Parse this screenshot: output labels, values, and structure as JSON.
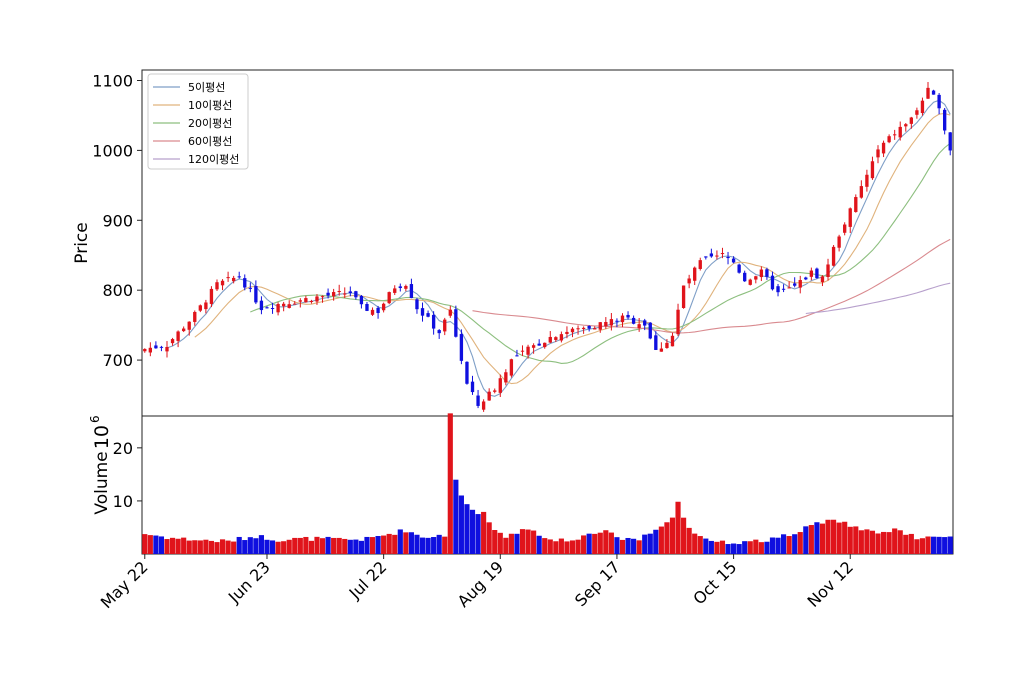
{
  "chart_data": {
    "type": "candlestick",
    "price_panel": {
      "ylabel": "Price",
      "yticks": [
        700,
        800,
        900,
        1000,
        1100
      ],
      "ylim": [
        620,
        1115
      ],
      "legend_position": "top-left",
      "legend": [
        {
          "label": "5이평선",
          "color": "#7f9fc7"
        },
        {
          "label": "10이평선",
          "color": "#e0b37d"
        },
        {
          "label": "20이평선",
          "color": "#8dbf7f"
        },
        {
          "label": "60이평선",
          "color": "#d98a8f"
        },
        {
          "label": "120이평선",
          "color": "#b7a0cc"
        }
      ]
    },
    "volume_panel": {
      "ylabel": "Volume",
      "scale_label": "10",
      "scale_exp": "6",
      "yticks": [
        10,
        20
      ],
      "ylim": [
        0,
        26
      ],
      "up_color": "#e0141b",
      "down_color": "#0f0fdf"
    },
    "xticks": [
      {
        "label": "May 22",
        "index": 0
      },
      {
        "label": "Jun 23",
        "index": 22
      },
      {
        "label": "Jul 22",
        "index": 43
      },
      {
        "label": "Aug 19",
        "index": 64
      },
      {
        "label": "Sep 17",
        "index": 85
      },
      {
        "label": "Oct 15",
        "index": 106
      },
      {
        "label": "Nov 12",
        "index": 127
      }
    ],
    "n_days": 146,
    "close_keypoints": [
      [
        0,
        716
      ],
      [
        4,
        722
      ],
      [
        9,
        765
      ],
      [
        13,
        808
      ],
      [
        17,
        820
      ],
      [
        21,
        775
      ],
      [
        25,
        782
      ],
      [
        31,
        790
      ],
      [
        37,
        797
      ],
      [
        39,
        775
      ],
      [
        42,
        770
      ],
      [
        45,
        805
      ],
      [
        47,
        810
      ],
      [
        49,
        775
      ],
      [
        53,
        740
      ],
      [
        55,
        770
      ],
      [
        58,
        665
      ],
      [
        60,
        635
      ],
      [
        63,
        660
      ],
      [
        66,
        700
      ],
      [
        70,
        720
      ],
      [
        74,
        737
      ],
      [
        80,
        748
      ],
      [
        86,
        760
      ],
      [
        90,
        752
      ],
      [
        92,
        712
      ],
      [
        95,
        735
      ],
      [
        97,
        805
      ],
      [
        100,
        840
      ],
      [
        104,
        850
      ],
      [
        106,
        840
      ],
      [
        108,
        815
      ],
      [
        111,
        825
      ],
      [
        114,
        795
      ],
      [
        117,
        805
      ],
      [
        120,
        825
      ],
      [
        122,
        818
      ],
      [
        125,
        880
      ],
      [
        128,
        930
      ],
      [
        132,
        1000
      ],
      [
        135,
        1025
      ],
      [
        138,
        1045
      ],
      [
        141,
        1085
      ],
      [
        143,
        1065
      ],
      [
        145,
        1000
      ]
    ],
    "volume_keypoints": [
      [
        0,
        3.8
      ],
      [
        5,
        3.0
      ],
      [
        10,
        2.6
      ],
      [
        15,
        2.4
      ],
      [
        20,
        3.4
      ],
      [
        24,
        2.7
      ],
      [
        30,
        2.9
      ],
      [
        36,
        2.7
      ],
      [
        40,
        2.8
      ],
      [
        44,
        3.8
      ],
      [
        47,
        4.5
      ],
      [
        50,
        3.2
      ],
      [
        54,
        3.6
      ],
      [
        55,
        26.5
      ],
      [
        56,
        14.0
      ],
      [
        57,
        11.0
      ],
      [
        59,
        8.0
      ],
      [
        61,
        7.5
      ],
      [
        63,
        4.5
      ],
      [
        65,
        3.5
      ],
      [
        69,
        5.0
      ],
      [
        72,
        3.0
      ],
      [
        76,
        2.5
      ],
      [
        80,
        3.6
      ],
      [
        83,
        4.3
      ],
      [
        85,
        3.0
      ],
      [
        89,
        2.8
      ],
      [
        92,
        5.0
      ],
      [
        95,
        6.8
      ],
      [
        96,
        9.5
      ],
      [
        98,
        4.5
      ],
      [
        102,
        2.6
      ],
      [
        106,
        2.1
      ],
      [
        110,
        2.4
      ],
      [
        114,
        3.0
      ],
      [
        118,
        4.5
      ],
      [
        121,
        5.7
      ],
      [
        124,
        6.8
      ],
      [
        127,
        5.5
      ],
      [
        131,
        4.0
      ],
      [
        135,
        4.6
      ],
      [
        139,
        3.0
      ],
      [
        143,
        3.0
      ],
      [
        145,
        3.3
      ]
    ],
    "ma_windows": [
      5,
      10,
      20,
      60,
      120
    ]
  }
}
